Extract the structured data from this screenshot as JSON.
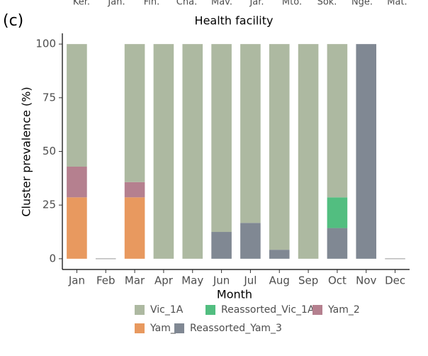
{
  "chart_data": {
    "type": "stacked_bar",
    "panel_label": "(c)",
    "top_axis_title": "Health facility",
    "top_tick_labels": [
      "Ker.",
      "Jan.",
      "Fin.",
      "Cha.",
      "Mav.",
      "Jar.",
      "Mto.",
      "Sok.",
      "Nge.",
      "Mat."
    ],
    "x_label": "Month",
    "y_label": "Cluster prevalence (%)",
    "categories": [
      "Jan",
      "Feb",
      "Mar",
      "Apr",
      "May",
      "Jun",
      "Jul",
      "Aug",
      "Sep",
      "Oct",
      "Nov",
      "Dec"
    ],
    "series": [
      {
        "name": "Vic_1A",
        "color": "#adb9a1",
        "values": [
          57.1,
          0,
          64.3,
          100,
          100,
          87.5,
          83.3,
          95.8,
          100,
          71.4,
          0,
          0
        ]
      },
      {
        "name": "Reassorted_Vic_1A",
        "color": "#52be80",
        "values": [
          0,
          0,
          0,
          0,
          0,
          0,
          0,
          0,
          0,
          14.3,
          0,
          0
        ]
      },
      {
        "name": "Yam_2",
        "color": "#b5808f",
        "values": [
          14.3,
          0,
          7.1,
          0,
          0,
          0,
          0,
          0,
          0,
          0,
          0,
          0
        ]
      },
      {
        "name": "Yam_3",
        "color": "#e8995f",
        "values": [
          28.6,
          0,
          28.6,
          0,
          0,
          0,
          0,
          0,
          0,
          0,
          0,
          0
        ]
      },
      {
        "name": "Reassorted_Yam_3",
        "color": "#808893",
        "values": [
          0,
          0,
          0,
          0,
          0,
          12.5,
          16.7,
          4.2,
          0,
          14.3,
          100,
          0
        ]
      }
    ],
    "ylim": [
      -5,
      105
    ],
    "yticks": [
      0,
      25,
      50,
      75,
      100
    ],
    "grid": false,
    "legend": "bottom"
  }
}
